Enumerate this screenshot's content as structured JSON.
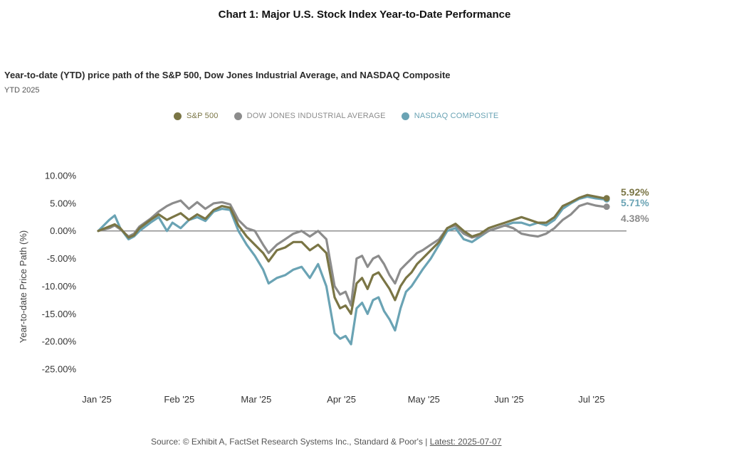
{
  "caption": "Chart 1: Major U.S. Stock Index Year-to-Date Performance",
  "chart_data": {
    "type": "line",
    "title": "Year-to-date (YTD) price path of the S&P 500, Dow Jones Industrial Average, and NASDAQ Composite",
    "subtitle": "YTD 2025",
    "xlabel": "",
    "ylabel": "Year-to-date Price Path (%)",
    "ylim": [
      -25,
      10
    ],
    "yticks": [
      10,
      5,
      0,
      -5,
      -10,
      -15,
      -20,
      -25
    ],
    "ytick_labels": [
      "10.00%",
      "5.00%",
      "0.00%",
      "-5.00%",
      "-10.00%",
      "-15.00%",
      "-20.00%",
      "-25.00%"
    ],
    "xlim": [
      2,
      188
    ],
    "xticks": [
      2,
      32,
      60,
      91,
      121,
      152,
      182
    ],
    "xtick_labels": [
      "Jan '25",
      "Feb '25",
      "Mar '25",
      "Apr '25",
      "May '25",
      "Jun '25",
      "Jul '25"
    ],
    "grid": false,
    "zero_line": true,
    "legend_position": "top",
    "series": [
      {
        "name": "S&P 500",
        "color": "#7a7545",
        "end_label": "5.92%",
        "x": [
          2,
          6,
          8,
          10,
          13,
          15,
          17,
          21,
          24,
          27,
          29,
          32,
          35,
          38,
          41,
          44,
          47,
          50,
          53,
          56,
          59,
          62,
          64,
          67,
          70,
          73,
          76,
          79,
          82,
          85,
          88,
          90,
          92,
          94,
          96,
          98,
          100,
          102,
          104,
          106,
          108,
          110,
          112,
          114,
          116,
          118,
          120,
          123,
          126,
          129,
          132,
          135,
          138,
          141,
          144,
          147,
          150,
          153,
          156,
          159,
          162,
          165,
          168,
          171,
          174,
          177,
          180,
          183,
          186,
          187
        ],
        "values": [
          0,
          0.8,
          1.2,
          0.5,
          -1.2,
          -0.8,
          0.5,
          2.0,
          3.0,
          2.0,
          2.5,
          3.2,
          2.0,
          3.0,
          2.2,
          3.8,
          4.5,
          4.2,
          1.0,
          -1.0,
          -2.5,
          -4.0,
          -5.5,
          -3.5,
          -3.0,
          -2.0,
          -2.0,
          -3.5,
          -2.5,
          -4.0,
          -12.0,
          -14.0,
          -13.5,
          -15.0,
          -9.5,
          -8.5,
          -10.5,
          -8.0,
          -7.5,
          -9.0,
          -10.5,
          -12.5,
          -10.0,
          -8.5,
          -7.5,
          -6.0,
          -5.0,
          -3.5,
          -2.0,
          0.5,
          1.3,
          0.0,
          -1.0,
          -0.5,
          0.5,
          1.0,
          1.5,
          2.0,
          2.5,
          2.0,
          1.5,
          1.5,
          2.5,
          4.5,
          5.2,
          6.0,
          6.5,
          6.2,
          5.92,
          5.92
        ]
      },
      {
        "name": "DOW JONES INDUSTRIAL AVERAGE",
        "color": "#8c8c8c",
        "end_label": "4.38%",
        "x": [
          2,
          6,
          8,
          10,
          13,
          15,
          17,
          21,
          24,
          27,
          29,
          32,
          35,
          38,
          41,
          44,
          47,
          50,
          53,
          56,
          59,
          62,
          64,
          67,
          70,
          73,
          76,
          79,
          82,
          85,
          88,
          90,
          92,
          94,
          96,
          98,
          100,
          102,
          104,
          106,
          108,
          110,
          112,
          114,
          116,
          118,
          120,
          123,
          126,
          129,
          132,
          135,
          138,
          141,
          144,
          147,
          150,
          153,
          156,
          159,
          162,
          165,
          168,
          171,
          174,
          177,
          180,
          183,
          186,
          187
        ],
        "values": [
          0,
          0.5,
          1.0,
          0.3,
          -1.0,
          -0.5,
          0.8,
          2.2,
          3.5,
          4.5,
          5.0,
          5.5,
          4.0,
          5.2,
          4.0,
          5.0,
          5.2,
          4.8,
          2.0,
          0.5,
          0.0,
          -2.5,
          -4.0,
          -2.5,
          -1.5,
          -0.5,
          0.0,
          -1.0,
          0.0,
          -1.5,
          -10.0,
          -11.5,
          -11.0,
          -13.5,
          -5.0,
          -4.5,
          -6.5,
          -5.0,
          -4.5,
          -6.0,
          -8.0,
          -9.5,
          -7.0,
          -6.0,
          -5.0,
          -4.0,
          -3.5,
          -2.5,
          -1.5,
          0.5,
          1.0,
          -0.5,
          -1.2,
          -0.8,
          0.0,
          0.5,
          1.0,
          0.5,
          -0.5,
          -0.8,
          -1.0,
          -0.5,
          0.5,
          2.0,
          3.0,
          4.5,
          5.0,
          4.6,
          4.38,
          4.38
        ]
      },
      {
        "name": "NASDAQ COMPOSITE",
        "color": "#6aa3b4",
        "end_label": "5.71%",
        "x": [
          2,
          6,
          8,
          10,
          13,
          15,
          17,
          21,
          24,
          27,
          29,
          32,
          35,
          38,
          41,
          44,
          47,
          50,
          53,
          56,
          59,
          62,
          64,
          67,
          70,
          73,
          76,
          79,
          82,
          85,
          88,
          90,
          92,
          94,
          96,
          98,
          100,
          102,
          104,
          106,
          108,
          110,
          112,
          114,
          116,
          118,
          120,
          123,
          126,
          129,
          132,
          135,
          138,
          141,
          144,
          147,
          150,
          153,
          156,
          159,
          162,
          165,
          168,
          171,
          174,
          177,
          180,
          183,
          186,
          187
        ],
        "values": [
          0,
          2.0,
          2.8,
          0.5,
          -1.5,
          -1.0,
          0.0,
          1.5,
          2.5,
          0.0,
          1.5,
          0.5,
          2.0,
          2.5,
          1.8,
          3.5,
          4.0,
          3.8,
          0.0,
          -2.5,
          -4.5,
          -7.0,
          -9.5,
          -8.5,
          -8.0,
          -7.0,
          -6.5,
          -8.5,
          -6.0,
          -10.0,
          -18.5,
          -19.5,
          -19.0,
          -20.5,
          -14.0,
          -13.0,
          -15.0,
          -12.5,
          -12.0,
          -14.5,
          -16.0,
          -18.0,
          -14.0,
          -11.0,
          -10.0,
          -8.5,
          -7.0,
          -5.0,
          -2.5,
          0.0,
          0.5,
          -1.5,
          -2.0,
          -1.0,
          0.0,
          0.5,
          1.0,
          1.5,
          1.5,
          1.0,
          1.5,
          1.0,
          2.0,
          4.0,
          5.0,
          5.8,
          6.2,
          5.9,
          5.71,
          5.71
        ]
      }
    ]
  },
  "source": {
    "text": "Source: © Exhibit A, FactSet Research Systems Inc., Standard & Poor's | ",
    "latest": "Latest: 2025-07-07"
  }
}
